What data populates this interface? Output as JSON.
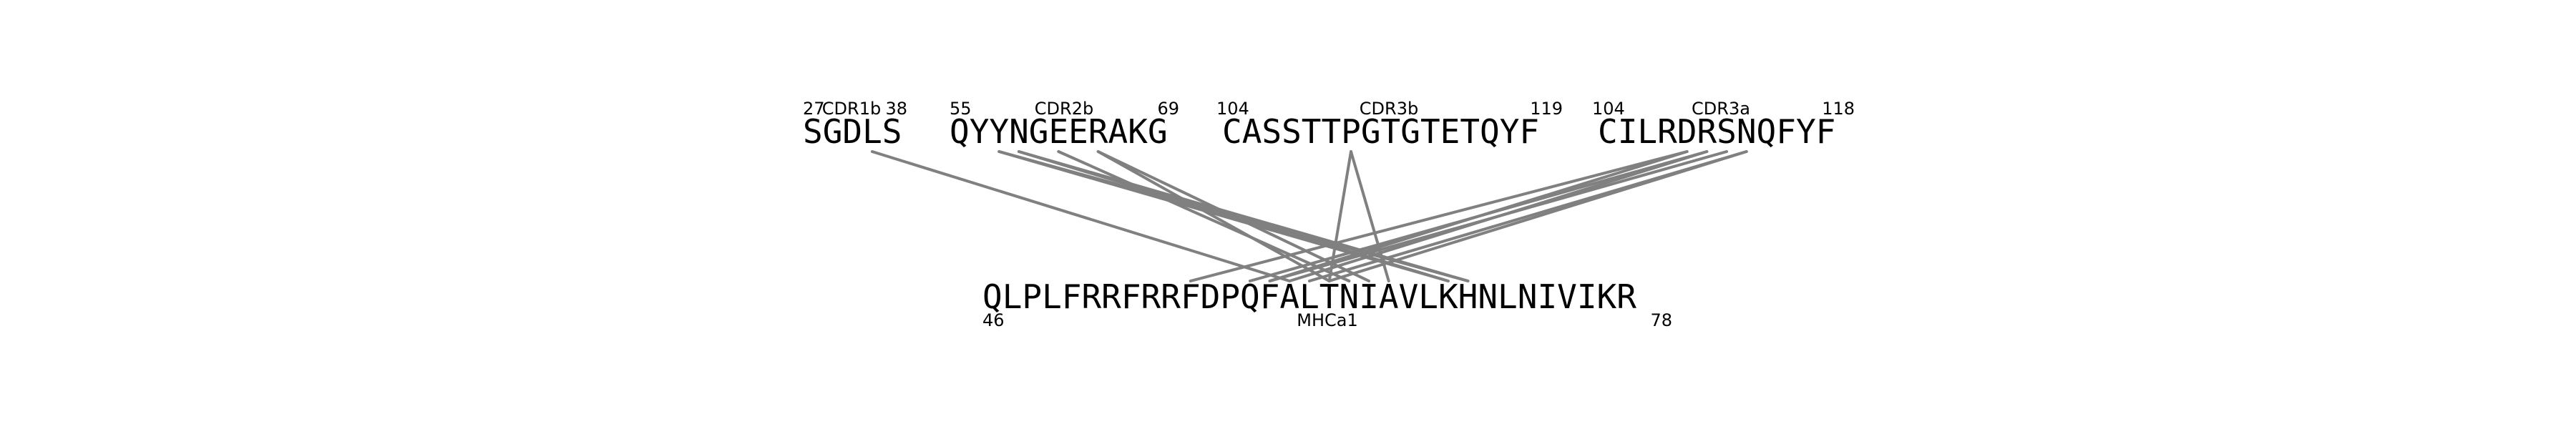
{
  "segments": [
    {
      "name": "CDR1b",
      "sequence": "SGDLS",
      "start": "27",
      "end": "38"
    },
    {
      "name": "CDR2b",
      "sequence": "QYYNGEERAKG",
      "start": "55",
      "end": "69"
    },
    {
      "name": "CDR3b",
      "sequence": "CASSTTPGTGTETQYF",
      "start": "104",
      "end": "119"
    },
    {
      "name": "CDR3a",
      "sequence": "CILRDRSNQFYF",
      "start": "104",
      "end": "118"
    }
  ],
  "peptide": {
    "name": "MHCa1",
    "sequence": "QLPLFRRFRRFDPQFALTNIAVLKHNLNIVIKR",
    "start": "46",
    "end": "78"
  },
  "contacts": [
    {
      "from_segment": 0,
      "from_residue": 3,
      "to_residue": 15
    },
    {
      "from_segment": 1,
      "from_residue": 2,
      "to_residue": 23
    },
    {
      "from_segment": 1,
      "from_residue": 2,
      "to_residue": 24
    },
    {
      "from_segment": 1,
      "from_residue": 3,
      "to_residue": 23
    },
    {
      "from_segment": 1,
      "from_residue": 3,
      "to_residue": 24
    },
    {
      "from_segment": 1,
      "from_residue": 5,
      "to_residue": 18
    },
    {
      "from_segment": 1,
      "from_residue": 7,
      "to_residue": 17
    },
    {
      "from_segment": 1,
      "from_residue": 7,
      "to_residue": 19
    },
    {
      "from_segment": 2,
      "from_residue": 6,
      "to_residue": 17
    },
    {
      "from_segment": 2,
      "from_residue": 6,
      "to_residue": 20
    },
    {
      "from_segment": 3,
      "from_residue": 4,
      "to_residue": 10
    },
    {
      "from_segment": 3,
      "from_residue": 4,
      "to_residue": 14
    },
    {
      "from_segment": 3,
      "from_residue": 5,
      "to_residue": 13
    },
    {
      "from_segment": 3,
      "from_residue": 5,
      "to_residue": 15
    },
    {
      "from_segment": 3,
      "from_residue": 6,
      "to_residue": 14
    },
    {
      "from_segment": 3,
      "from_residue": 7,
      "to_residue": 16
    },
    {
      "from_segment": 3,
      "from_residue": 7,
      "to_residue": 17
    }
  ],
  "colors": {
    "line": "#808080",
    "text": "#000000"
  }
}
